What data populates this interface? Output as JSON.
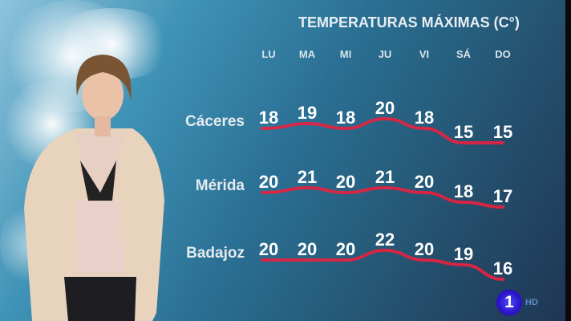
{
  "chart_data": {
    "type": "line",
    "title": "TEMPERATURAS MÁXIMAS (C°)",
    "categories": [
      "LU",
      "MA",
      "MI",
      "JU",
      "VI",
      "SÁ",
      "DO"
    ],
    "series": [
      {
        "name": "Cáceres",
        "values": [
          18,
          19,
          18,
          20,
          18,
          15,
          15
        ]
      },
      {
        "name": "Mérida",
        "values": [
          20,
          21,
          20,
          21,
          20,
          18,
          17
        ]
      },
      {
        "name": "Badajoz",
        "values": [
          20,
          20,
          20,
          22,
          20,
          19,
          16
        ]
      }
    ],
    "line_color": "#e8213f"
  },
  "channel": {
    "logo": "1",
    "hd": "HD"
  }
}
